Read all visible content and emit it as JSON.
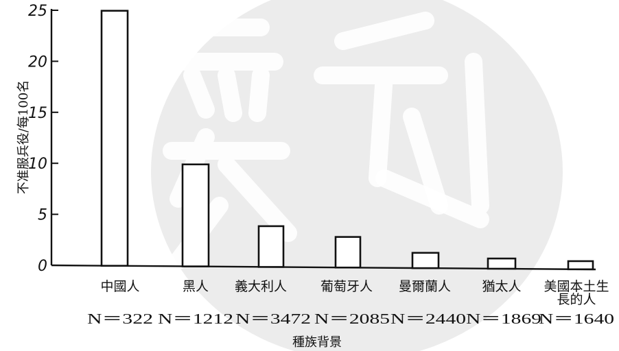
{
  "chart_data": {
    "type": "bar",
    "title": "",
    "xlabel": "種族背景",
    "ylabel": "不准服兵役/每100名",
    "ylim": [
      0,
      25
    ],
    "yticks": [
      0,
      5,
      10,
      15,
      20,
      25
    ],
    "ytick_labels": [
      "0",
      "5",
      "10",
      "15",
      "20",
      "25"
    ],
    "categories": [
      "中國人",
      "黑人",
      "義大利人",
      "葡萄牙人",
      "曼爾蘭人",
      "猶太人",
      "美國本土生長的人"
    ],
    "category_lines": [
      [
        "中國人"
      ],
      [
        "黑人"
      ],
      [
        "義大利人"
      ],
      [
        "葡萄牙人"
      ],
      [
        "曼爾蘭人"
      ],
      [
        "猶太人"
      ],
      [
        "美國本土生",
        "長的人"
      ]
    ],
    "sample_sizes": [
      "N＝322",
      "N＝1212",
      "N＝3472",
      "N＝2085",
      "N＝2440",
      "N＝1869",
      "N＝1640"
    ],
    "values": [
      25,
      10,
      4,
      3,
      1.5,
      1,
      0.8
    ],
    "grid": false,
    "legend": "none"
  }
}
